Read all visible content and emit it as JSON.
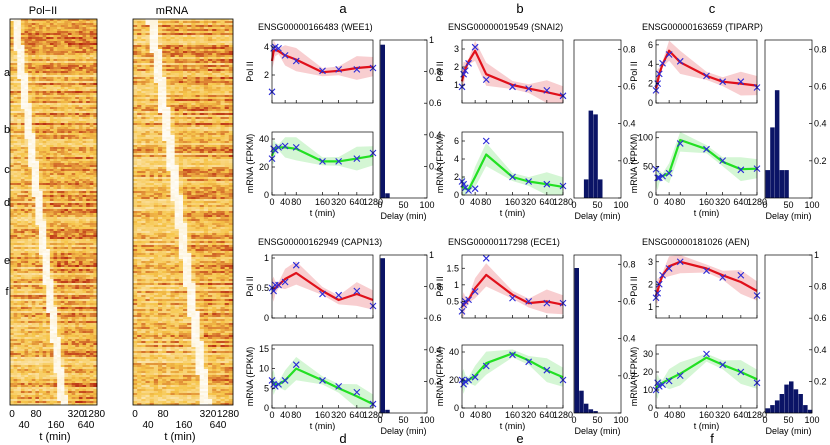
{
  "colors": {
    "pol_line": "#e0101a",
    "pol_band": "#f7c6c8",
    "mrna_line": "#22e022",
    "mrna_band": "#cdf5cd",
    "marker": "#2a2ad8",
    "bar": "#0b1466",
    "heat_low": "#ffffff",
    "heat_mid": "#f6c54a",
    "heat_high": "#b0120a"
  },
  "heatmaps": {
    "xlabel": "t (min)",
    "row_labels": [
      "a",
      "b",
      "c",
      "d",
      "e",
      "f"
    ],
    "panels": [
      {
        "title": "Pol−II",
        "ticks_top": [
          "0",
          "80",
          "320",
          "1280"
        ],
        "ticks_bottom": [
          "40",
          "160",
          "640"
        ]
      },
      {
        "title": "mRNA",
        "ticks_top": [
          "0",
          "80",
          "320",
          "1280"
        ],
        "ticks_bottom": [
          "40",
          "160",
          "640"
        ]
      }
    ]
  },
  "column_letters": [
    "a",
    "b",
    "c",
    "d",
    "e",
    "f"
  ],
  "chart_data": [
    {
      "type": "line",
      "gene": "ENSG00000166483 (WEE1)",
      "panel": "a",
      "x_ticks": [
        "0",
        "40",
        "80",
        "160",
        "320",
        "640",
        "1280"
      ],
      "xlabel": "t (min)",
      "pol": {
        "ylabel": "Pol II",
        "yticks": [
          "2",
          "4"
        ],
        "ylim": [
          0,
          4.5
        ],
        "x": [
          0,
          5,
          10,
          20,
          40,
          80,
          160,
          320,
          640,
          1280
        ],
        "points": [
          0.8,
          3.9,
          4.0,
          3.9,
          3.4,
          3.0,
          2.3,
          2.4,
          2.4,
          2.5
        ],
        "line": [
          3.0,
          3.7,
          3.8,
          3.7,
          3.4,
          3.1,
          2.2,
          2.3,
          2.5,
          2.6
        ]
      },
      "mrna": {
        "ylabel": "mRNA (FPKM)",
        "yticks": [
          "0",
          "20",
          "40"
        ],
        "ylim": [
          0,
          45
        ],
        "x": [
          0,
          5,
          10,
          20,
          40,
          80,
          160,
          320,
          640,
          1280
        ],
        "points": [
          26,
          33,
          32,
          34,
          35,
          34,
          24,
          24,
          26,
          30
        ],
        "line": [
          28,
          31,
          33,
          34,
          34,
          33,
          24,
          24,
          26,
          28
        ]
      },
      "delay": {
        "xlabel": "Delay (min)",
        "xticks": [
          "0",
          "50",
          "100"
        ],
        "yticks": [
          "0",
          "0.2",
          "0.4",
          "0.6",
          "0.8",
          "1"
        ],
        "bins": [
          0,
          10,
          20,
          30,
          40,
          50,
          60,
          70,
          80,
          90
        ],
        "values": [
          0.97,
          0.03,
          0,
          0,
          0,
          0,
          0,
          0,
          0,
          0
        ]
      }
    },
    {
      "type": "line",
      "gene": "ENSG00000019549 (SNAI2)",
      "panel": "b",
      "x_ticks": [
        "0",
        "40",
        "80",
        "160",
        "320",
        "640",
        "1280"
      ],
      "xlabel": "t (min)",
      "pol": {
        "ylabel": "Pol II",
        "yticks": [
          "1",
          "2",
          "3"
        ],
        "ylim": [
          0,
          3.5
        ],
        "x": [
          0,
          5,
          10,
          20,
          40,
          80,
          160,
          320,
          640,
          1280
        ],
        "points": [
          0.9,
          1.6,
          1.8,
          2.2,
          3.1,
          1.3,
          0.9,
          0.8,
          0.7,
          0.4
        ],
        "line": [
          1.2,
          1.6,
          1.9,
          2.3,
          2.9,
          1.6,
          1.0,
          0.8,
          0.6,
          0.4
        ]
      },
      "mrna": {
        "ylabel": "mRNA (FPKM)",
        "yticks": [
          "0",
          "2",
          "4",
          "6"
        ],
        "ylim": [
          0,
          7
        ],
        "x": [
          0,
          5,
          10,
          20,
          40,
          80,
          160,
          320,
          640,
          1280
        ],
        "points": [
          1.5,
          1.2,
          0.8,
          0.5,
          0.7,
          6.0,
          2.0,
          1.5,
          1.2,
          1.0
        ],
        "line": [
          1.0,
          0.8,
          0.7,
          0.6,
          2.0,
          4.5,
          2.0,
          1.5,
          1.2,
          0.9
        ]
      },
      "delay": {
        "xlabel": "Delay (min)",
        "xticks": [
          "0",
          "50",
          "100"
        ],
        "yticks": [
          "0",
          "0.2",
          "0.4",
          "0.6",
          "0.8"
        ],
        "bins": [
          0,
          10,
          20,
          30,
          40,
          50,
          60,
          70,
          80,
          90
        ],
        "values": [
          0,
          0,
          0.1,
          0.47,
          0.45,
          0.1,
          0,
          0,
          0,
          0
        ]
      }
    },
    {
      "type": "line",
      "gene": "ENSG00000163659 (TIPARP)",
      "panel": "c",
      "x_ticks": [
        "0",
        "40",
        "80",
        "160",
        "320",
        "640",
        "1280"
      ],
      "xlabel": "t (min)",
      "pol": {
        "ylabel": "Pol II",
        "yticks": [
          "0",
          "2",
          "4",
          "6"
        ],
        "ylim": [
          0,
          6.5
        ],
        "x": [
          0,
          5,
          10,
          20,
          40,
          80,
          160,
          320,
          640,
          1280
        ],
        "points": [
          1.3,
          2.0,
          3.0,
          4.1,
          5.0,
          4.3,
          2.8,
          2.2,
          2.2,
          1.6
        ],
        "line": [
          1.5,
          2.2,
          3.0,
          4.0,
          5.4,
          4.2,
          2.8,
          2.2,
          2.0,
          1.8
        ]
      },
      "mrna": {
        "ylabel": "mRNA (FPKM)",
        "yticks": [
          "0",
          "50",
          "100"
        ],
        "ylim": [
          0,
          110
        ],
        "x": [
          0,
          5,
          10,
          20,
          40,
          80,
          160,
          320,
          640,
          1280
        ],
        "points": [
          45,
          30,
          30,
          33,
          38,
          90,
          80,
          60,
          44,
          46
        ],
        "line": [
          30,
          30,
          32,
          33,
          38,
          96,
          80,
          58,
          45,
          46
        ]
      },
      "delay": {
        "xlabel": "Delay (min)",
        "xticks": [
          "0",
          "50",
          "100"
        ],
        "yticks": [
          "0",
          "0.2",
          "0.4",
          "0.6",
          "0.8"
        ],
        "bins": [
          0,
          10,
          20,
          30,
          40,
          50,
          60,
          70,
          80,
          90
        ],
        "values": [
          0.15,
          0.38,
          0.58,
          0.15,
          0.15,
          0,
          0,
          0,
          0,
          0
        ]
      }
    },
    {
      "type": "line",
      "gene": "ENSG00000162949 (CAPN13)",
      "panel": "d",
      "x_ticks": [
        "0",
        "40",
        "80",
        "160",
        "320",
        "640",
        "1280"
      ],
      "xlabel": "t (min)",
      "pol": {
        "ylabel": "Pol II",
        "yticks": [
          "0",
          "0.5",
          "1"
        ],
        "ylim": [
          0,
          1.05
        ],
        "x": [
          0,
          5,
          10,
          20,
          40,
          80,
          160,
          320,
          640,
          1280
        ],
        "points": [
          0.5,
          0.45,
          0.55,
          0.55,
          0.6,
          0.88,
          0.4,
          0.38,
          0.45,
          0.2
        ],
        "line": [
          0.5,
          0.48,
          0.5,
          0.55,
          0.65,
          0.75,
          0.45,
          0.3,
          0.4,
          0.3
        ]
      },
      "mrna": {
        "ylabel": "mRNA (FPKM)",
        "yticks": [
          "0",
          "5",
          "10",
          "15"
        ],
        "ylim": [
          0,
          16
        ],
        "x": [
          0,
          5,
          10,
          20,
          40,
          80,
          160,
          320,
          640,
          1280
        ],
        "points": [
          7,
          6,
          5.5,
          6,
          7,
          11,
          7,
          5.5,
          4,
          1
        ],
        "line": [
          7,
          6.5,
          6,
          6,
          7,
          10,
          7,
          5,
          3,
          1
        ]
      },
      "delay": {
        "xlabel": "Delay (min)",
        "xticks": [
          "0",
          "50",
          "100"
        ],
        "yticks": [
          "0",
          "0.2",
          "0.4",
          "0.6",
          "0.8",
          "1"
        ],
        "bins": [
          0,
          10,
          20,
          30,
          40,
          50,
          60,
          70,
          80,
          90
        ],
        "values": [
          0.98,
          0.02,
          0,
          0,
          0,
          0,
          0,
          0,
          0,
          0
        ]
      }
    },
    {
      "type": "line",
      "gene": "ENSG00000117298 (ECE1)",
      "panel": "e",
      "x_ticks": [
        "0",
        "40",
        "80",
        "160",
        "320",
        "640",
        "1280"
      ],
      "xlabel": "t (min)",
      "pol": {
        "ylabel": "Pol II",
        "yticks": [
          "0.5",
          "1",
          "1.5"
        ],
        "ylim": [
          0,
          1.9
        ],
        "x": [
          0,
          5,
          10,
          20,
          40,
          80,
          160,
          320,
          640,
          1280
        ],
        "points": [
          0.2,
          0.4,
          0.5,
          0.55,
          0.8,
          1.8,
          0.6,
          0.5,
          0.45,
          0.45
        ],
        "line": [
          0.35,
          0.4,
          0.45,
          0.55,
          0.9,
          1.3,
          0.7,
          0.45,
          0.5,
          0.4
        ]
      },
      "mrna": {
        "ylabel": "mRNA (FPKM)",
        "yticks": [
          "0",
          "20",
          "40"
        ],
        "ylim": [
          0,
          45
        ],
        "x": [
          0,
          5,
          10,
          20,
          40,
          80,
          160,
          320,
          640,
          1280
        ],
        "points": [
          20,
          17,
          19,
          20,
          22,
          30,
          38,
          33,
          27,
          20
        ],
        "line": [
          20,
          19,
          19,
          20,
          23,
          32,
          39,
          34,
          27,
          22
        ]
      },
      "delay": {
        "xlabel": "Delay (min)",
        "xticks": [
          "0",
          "50",
          "100"
        ],
        "yticks": [
          "0",
          "0.2",
          "0.4",
          "0.6",
          "0.8"
        ],
        "bins": [
          0,
          10,
          20,
          30,
          40,
          50,
          60,
          70,
          80,
          90
        ],
        "values": [
          0.78,
          0.12,
          0.05,
          0.02,
          0.01,
          0,
          0,
          0,
          0,
          0
        ]
      }
    },
    {
      "type": "line",
      "gene": "ENSG00000181026 (AEN)",
      "panel": "f",
      "x_ticks": [
        "0",
        "40",
        "80",
        "160",
        "320",
        "640",
        "1280"
      ],
      "xlabel": "t (min)",
      "pol": {
        "ylabel": "Pol II",
        "yticks": [
          "1",
          "2",
          "3"
        ],
        "ylim": [
          0.5,
          3.3
        ],
        "x": [
          0,
          5,
          10,
          20,
          40,
          80,
          160,
          320,
          640,
          1280
        ],
        "points": [
          1.4,
          1.6,
          2.0,
          2.4,
          2.7,
          3.0,
          2.6,
          2.3,
          2.4,
          1.5
        ],
        "line": [
          1.5,
          1.7,
          2.0,
          2.4,
          2.8,
          3.0,
          2.7,
          2.4,
          2.1,
          1.7
        ]
      },
      "mrna": {
        "ylabel": "mRNA (FPKM)",
        "yticks": [
          "0",
          "10",
          "20",
          "30"
        ],
        "ylim": [
          0,
          35
        ],
        "x": [
          0,
          5,
          10,
          20,
          40,
          80,
          160,
          320,
          640,
          1280
        ],
        "points": [
          10,
          14,
          12,
          13,
          15,
          18,
          30,
          24,
          20,
          14
        ],
        "line": [
          11,
          12,
          13,
          14,
          16,
          19,
          28,
          24,
          20,
          16
        ]
      },
      "delay": {
        "xlabel": "Delay (min)",
        "xticks": [
          "0",
          "50",
          "100"
        ],
        "yticks": [
          "0",
          "0.2",
          "0.4",
          "0.6",
          "0.8",
          "1"
        ],
        "bins": [
          0,
          10,
          20,
          30,
          40,
          50,
          60,
          70,
          80,
          90
        ],
        "values": [
          0.03,
          0.05,
          0.08,
          0.12,
          0.18,
          0.2,
          0.15,
          0.12,
          0.05,
          0.02
        ]
      }
    }
  ]
}
